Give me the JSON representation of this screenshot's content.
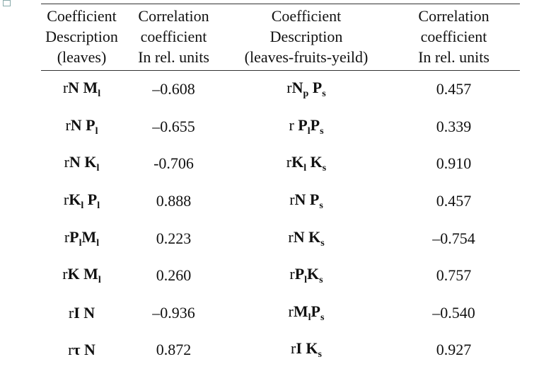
{
  "table": {
    "header": [
      [
        "Coefficient",
        "Description",
        "(leaves)"
      ],
      [
        "Correlation",
        "coefficient",
        "In rel. units"
      ],
      [
        "Coefficient",
        "Description",
        "(leaves-fruits-yeild)"
      ],
      [
        "Correlation",
        "coefficient",
        "In rel. units"
      ]
    ],
    "rows": [
      [
        [
          {
            "text": "r",
            "style": "normal"
          },
          {
            "text": "N M",
            "style": "bold"
          },
          {
            "text": "l",
            "style": "sub"
          }
        ],
        "–0.608",
        [
          {
            "text": "r",
            "style": "normal"
          },
          {
            "text": "N",
            "style": "bold"
          },
          {
            "text": "p",
            "style": "sub"
          },
          {
            "text": " P",
            "style": "bold"
          },
          {
            "text": "s",
            "style": "sub"
          }
        ],
        "0.457"
      ],
      [
        [
          {
            "text": "r",
            "style": "normal"
          },
          {
            "text": "N P",
            "style": "bold"
          },
          {
            "text": "l",
            "style": "sub"
          }
        ],
        "–0.655",
        [
          {
            "text": "r ",
            "style": "normal"
          },
          {
            "text": "P",
            "style": "bold"
          },
          {
            "text": "l",
            "style": "sub"
          },
          {
            "text": "P",
            "style": "bold"
          },
          {
            "text": "s",
            "style": "sub"
          }
        ],
        "0.339"
      ],
      [
        [
          {
            "text": "r",
            "style": "normal"
          },
          {
            "text": "N K",
            "style": "bold"
          },
          {
            "text": "l",
            "style": "sub"
          }
        ],
        "-0.706",
        [
          {
            "text": "r",
            "style": "normal"
          },
          {
            "text": "K",
            "style": "bold"
          },
          {
            "text": "l",
            "style": "sub"
          },
          {
            "text": " K",
            "style": "bold"
          },
          {
            "text": "s",
            "style": "sub"
          }
        ],
        "0.910"
      ],
      [
        [
          {
            "text": "r",
            "style": "normal"
          },
          {
            "text": "K",
            "style": "bold"
          },
          {
            "text": "l",
            "style": "sub"
          },
          {
            "text": " P",
            "style": "bold"
          },
          {
            "text": "l",
            "style": "sub"
          }
        ],
        "0.888",
        [
          {
            "text": "r",
            "style": "normal"
          },
          {
            "text": "N P",
            "style": "bold"
          },
          {
            "text": "s",
            "style": "sub"
          }
        ],
        "0.457"
      ],
      [
        [
          {
            "text": "r",
            "style": "normal"
          },
          {
            "text": "P",
            "style": "bold"
          },
          {
            "text": "l",
            "style": "sub"
          },
          {
            "text": "M",
            "style": "bold"
          },
          {
            "text": "l",
            "style": "sub"
          }
        ],
        "0.223",
        [
          {
            "text": "r",
            "style": "normal"
          },
          {
            "text": "N K",
            "style": "bold"
          },
          {
            "text": "s",
            "style": "sub"
          }
        ],
        "–0.754"
      ],
      [
        [
          {
            "text": "r",
            "style": "normal"
          },
          {
            "text": "K M",
            "style": "bold"
          },
          {
            "text": "l",
            "style": "sub"
          }
        ],
        "0.260",
        [
          {
            "text": "r",
            "style": "normal"
          },
          {
            "text": "P",
            "style": "bold"
          },
          {
            "text": "l",
            "style": "sub"
          },
          {
            "text": "K",
            "style": "bold"
          },
          {
            "text": "s",
            "style": "sub"
          }
        ],
        "0.757"
      ],
      [
        [
          {
            "text": "r",
            "style": "normal"
          },
          {
            "text": "I N",
            "style": "bold"
          }
        ],
        "–0.936",
        [
          {
            "text": "r",
            "style": "normal"
          },
          {
            "text": "M",
            "style": "bold"
          },
          {
            "text": "l",
            "style": "sub"
          },
          {
            "text": "P",
            "style": "bold"
          },
          {
            "text": "s",
            "style": "sub"
          }
        ],
        "–0.540"
      ],
      [
        [
          {
            "text": "r",
            "style": "normal"
          },
          {
            "text": "τ N",
            "style": "bold"
          }
        ],
        "0.872",
        [
          {
            "text": "r",
            "style": "normal"
          },
          {
            "text": "I K",
            "style": "bold"
          },
          {
            "text": "s",
            "style": "sub"
          }
        ],
        "0.927"
      ]
    ]
  }
}
